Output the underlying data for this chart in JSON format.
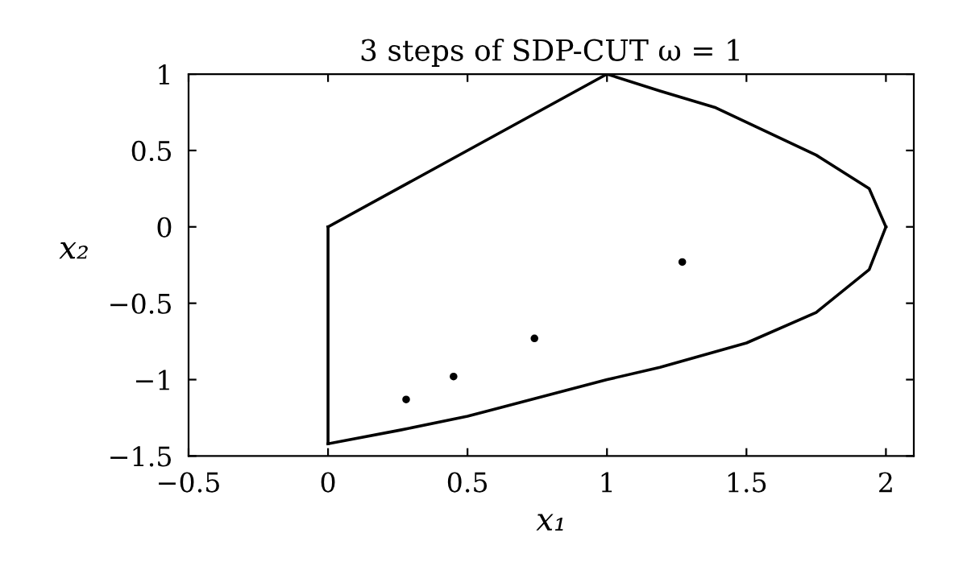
{
  "chart_data": {
    "type": "line",
    "title": "3 steps of SDP-CUT ω = 1",
    "xlabel": "x₁",
    "ylabel": "x₂",
    "xlim": [
      -0.5,
      2.1
    ],
    "ylim": [
      -1.5,
      1
    ],
    "xticks": [
      -0.5,
      0,
      0.5,
      1,
      1.5,
      2
    ],
    "yticks": [
      -1.5,
      -1,
      -0.5,
      0,
      0.5,
      1
    ],
    "grid": false,
    "legend": false,
    "series": [
      {
        "color": "#000000",
        "marker": "none",
        "line_style": "solid",
        "x": [
          0,
          0
        ],
        "values": [
          -1.42,
          0
        ]
      },
      {
        "color": "#000000",
        "marker": "none",
        "line_style": "solid",
        "x": [
          0,
          1,
          1.19,
          1.39,
          1.75,
          1.94,
          2
        ],
        "values": [
          0,
          1,
          0.89,
          0.78,
          0.47,
          0.25,
          0
        ]
      },
      {
        "color": "#000000",
        "marker": "none",
        "line_style": "solid",
        "x": [
          0,
          0.26,
          0.5,
          1.0,
          1.19,
          1.5,
          1.75,
          1.94,
          2
        ],
        "values": [
          -1.42,
          -1.33,
          -1.24,
          -1.0,
          -0.92,
          -0.76,
          -0.56,
          -0.28,
          0
        ]
      },
      {
        "type": "scatter",
        "color": "#000000",
        "marker": "circle",
        "x": [
          0.28,
          0.45,
          0.74,
          1.27
        ],
        "values": [
          -1.13,
          -0.98,
          -0.73,
          -0.23
        ]
      }
    ]
  }
}
